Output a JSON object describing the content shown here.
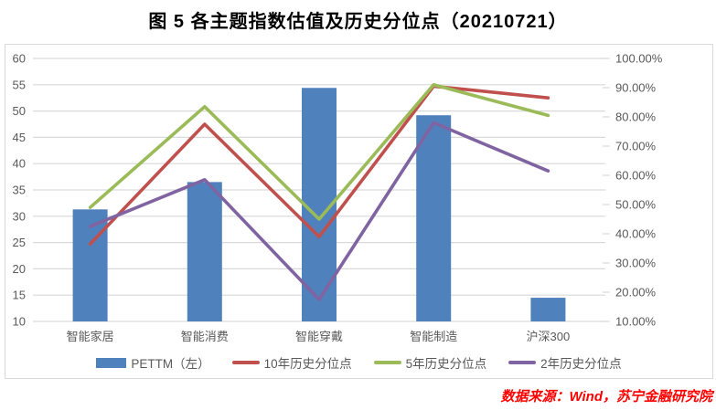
{
  "source": "数据来源：Wind，苏宁金融研究院",
  "chart_data": {
    "type": "bar",
    "subtype": "combo-bar-line-dual-axis",
    "title": "图 5  各主题指数估值及历史分位点（20210721）",
    "categories": [
      "智能家居",
      "智能消费",
      "智能穿戴",
      "智能制造",
      "沪深300"
    ],
    "bar_series": {
      "name": "PETTM（左）",
      "axis": "left",
      "values": [
        31.3,
        36.5,
        54.4,
        49.2,
        14.5
      ],
      "color": "#4F81BD"
    },
    "line_series": [
      {
        "name": "10年历史分位点",
        "axis": "right",
        "values_pct": [
          36.5,
          77.5,
          39,
          90.5,
          86.5
        ],
        "color": "#C0504D"
      },
      {
        "name": "5年历史分位点",
        "axis": "right",
        "values_pct": [
          49,
          83.5,
          45,
          91,
          80.5
        ],
        "color": "#9BBB59"
      },
      {
        "name": "2年历史分位点",
        "axis": "right",
        "values_pct": [
          42.5,
          58.5,
          17.5,
          78,
          61.5
        ],
        "color": "#8064A2"
      }
    ],
    "left_axis": {
      "min": 10,
      "max": 60,
      "step": 5,
      "ticks": [
        60,
        55,
        50,
        45,
        40,
        35,
        30,
        25,
        20,
        15,
        10
      ]
    },
    "right_axis": {
      "min": 10,
      "max": 100,
      "step": 10,
      "format": "percent",
      "ticks": [
        {
          "value": 100,
          "label": "100.00%"
        },
        {
          "value": 90,
          "label": "90.00%"
        },
        {
          "value": 80,
          "label": "80.00%"
        },
        {
          "value": 70,
          "label": "70.00%"
        },
        {
          "value": 60,
          "label": "60.00%"
        },
        {
          "value": 50,
          "label": "50.00%"
        },
        {
          "value": 40,
          "label": "40.00%"
        },
        {
          "value": 30,
          "label": "30.00%"
        },
        {
          "value": 20,
          "label": "20.00%"
        },
        {
          "value": 10,
          "label": "10.00%"
        }
      ]
    },
    "grid": true,
    "legend_position": "bottom",
    "colors": {
      "grid": "#D9D9D9",
      "axis_text": "#595959",
      "title": "#000000",
      "source": "#FF0000",
      "background": "#FFFFFF"
    }
  }
}
